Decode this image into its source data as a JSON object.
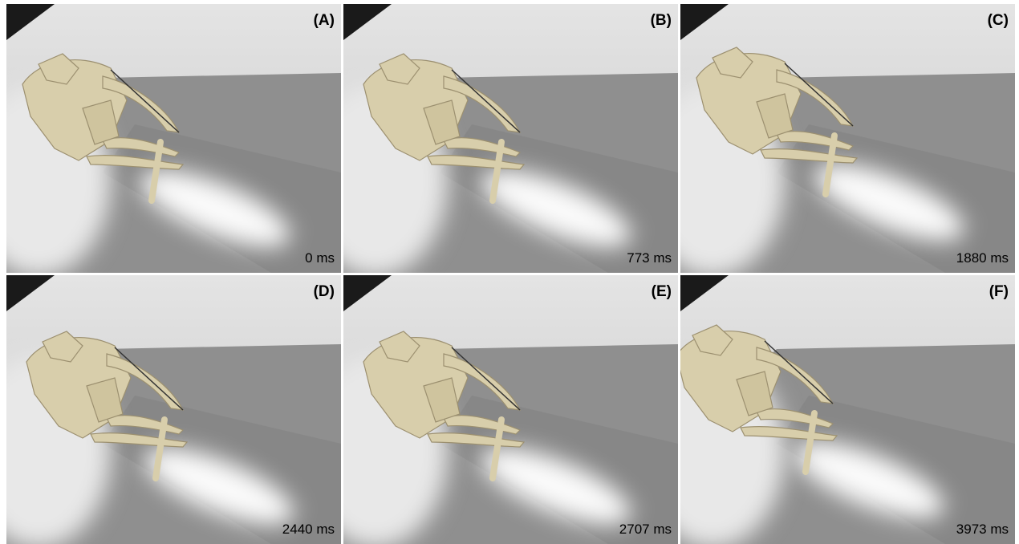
{
  "panels": [
    {
      "label": "(A)",
      "time": "0 ms"
    },
    {
      "label": "(B)",
      "time": "773 ms"
    },
    {
      "label": "(C)",
      "time": "1880 ms"
    },
    {
      "label": "(D)",
      "time": "2440 ms"
    },
    {
      "label": "(E)",
      "time": "2707 ms"
    },
    {
      "label": "(F)",
      "time": "3973 ms"
    }
  ]
}
